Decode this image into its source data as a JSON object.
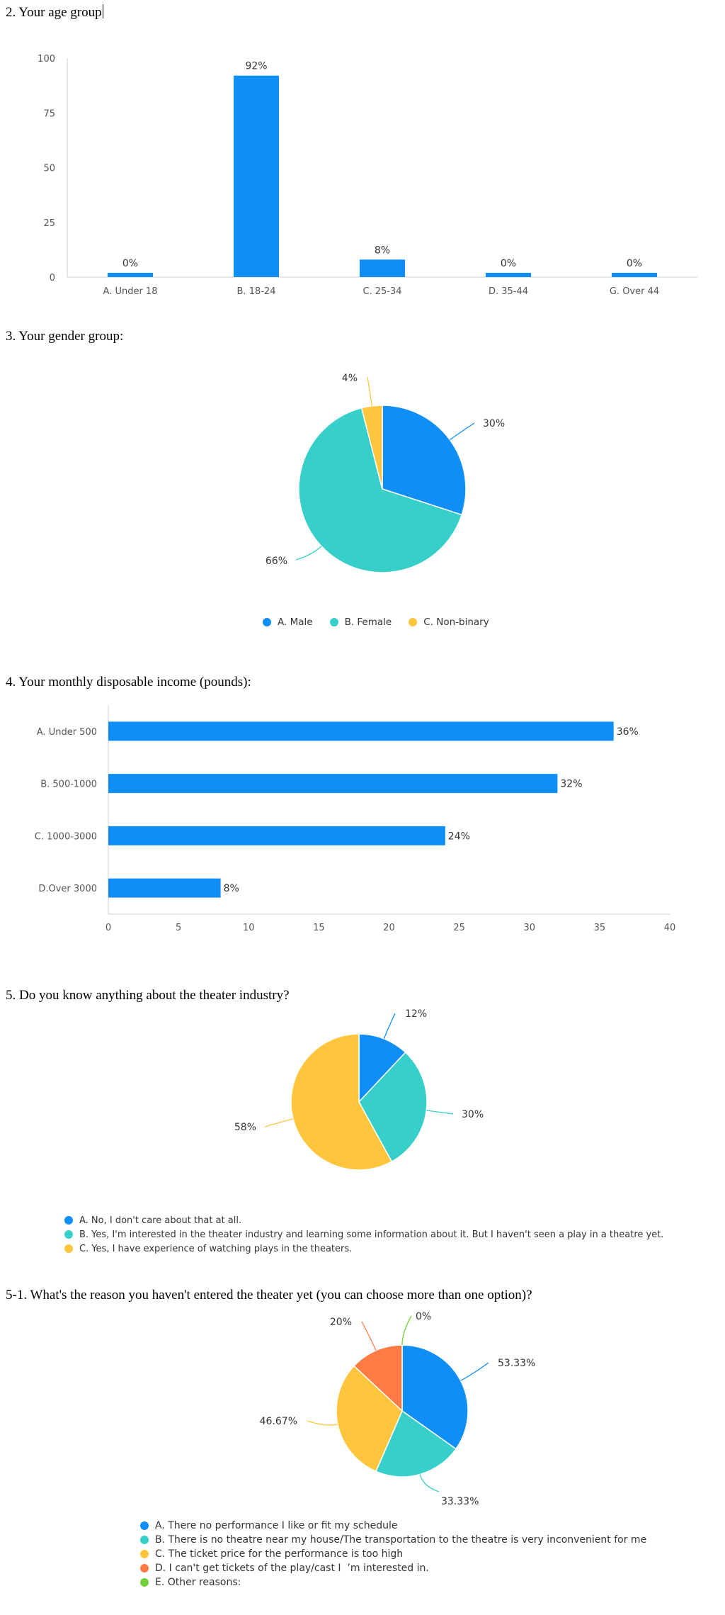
{
  "colors": {
    "blue": "#0f8ef5",
    "teal": "#36cfc9",
    "yellow": "#ffc53d",
    "orange": "#ff7a45",
    "green": "#73d13d",
    "axis": "#d0d0d0"
  },
  "questions": {
    "q2": "2. Your age group",
    "q3": "3. Your gender group:",
    "q4": "4. Your monthly disposable income (pounds):",
    "q5": "5. Do you know anything about the theater industry?",
    "q51": "5-1. What's the reason you haven't entered the theater yet (you can choose more than one option)?"
  },
  "chart_data": [
    {
      "type": "bar",
      "categories": [
        "A. Under 18",
        "B. 18-24",
        "C. 25-34",
        "D. 35-44",
        "G. Over 44"
      ],
      "values": [
        0,
        92,
        8,
        0,
        0
      ],
      "value_labels": [
        "0%",
        "92%",
        "8%",
        "0%",
        "0%"
      ],
      "yticks": [
        "0",
        "25",
        "50",
        "75",
        "100"
      ],
      "ylim": [
        0,
        100
      ],
      "color": "#0f8ef5"
    },
    {
      "type": "pie",
      "categories": [
        "A. Male",
        "B. Female",
        "C. Non-binary"
      ],
      "values": [
        30,
        66,
        4
      ],
      "value_labels": [
        "30%",
        "66%",
        "4%"
      ],
      "colors": [
        "#0f8ef5",
        "#36cfc9",
        "#ffc53d"
      ],
      "legend_position": "bottom"
    },
    {
      "type": "bar",
      "orientation": "horizontal",
      "categories": [
        "A. Under 500",
        "B. 500-1000",
        "C. 1000-3000",
        "D.Over 3000"
      ],
      "values": [
        36,
        32,
        24,
        8
      ],
      "value_labels": [
        "36%",
        "32%",
        "24%",
        "8%"
      ],
      "xticks": [
        "0",
        "5",
        "10",
        "15",
        "20",
        "25",
        "30",
        "35",
        "40"
      ],
      "xlim": [
        0,
        40
      ],
      "color": "#0f8ef5"
    },
    {
      "type": "pie",
      "categories": [
        "A. No, I don't care about that at all.",
        "B. Yes, I'm interested in the theater industry and learning some information about it. But I haven't seen a play in a theatre yet.",
        "C. Yes, I have experience of watching plays in the theaters."
      ],
      "values": [
        12,
        30,
        58
      ],
      "value_labels": [
        "12%",
        "30%",
        "58%"
      ],
      "colors": [
        "#0f8ef5",
        "#36cfc9",
        "#ffc53d"
      ],
      "legend_position": "bottom"
    },
    {
      "type": "pie",
      "categories": [
        "A. There no performance I like or fit my schedule",
        "B. There is no theatre near my house/The transportation to the theatre is very inconvenient for me",
        "C. The ticket price for the performance is too high",
        "D. I can't get tickets of the play/cast I  ’m interested in.",
        "E. Other reasons:"
      ],
      "values": [
        53.33,
        33.33,
        46.67,
        20,
        0
      ],
      "value_labels": [
        "53.33%",
        "33.33%",
        "46.67%",
        "20%",
        "0%"
      ],
      "colors": [
        "#0f8ef5",
        "#36cfc9",
        "#ffc53d",
        "#ff7a45",
        "#73d13d"
      ],
      "legend_position": "bottom"
    }
  ]
}
